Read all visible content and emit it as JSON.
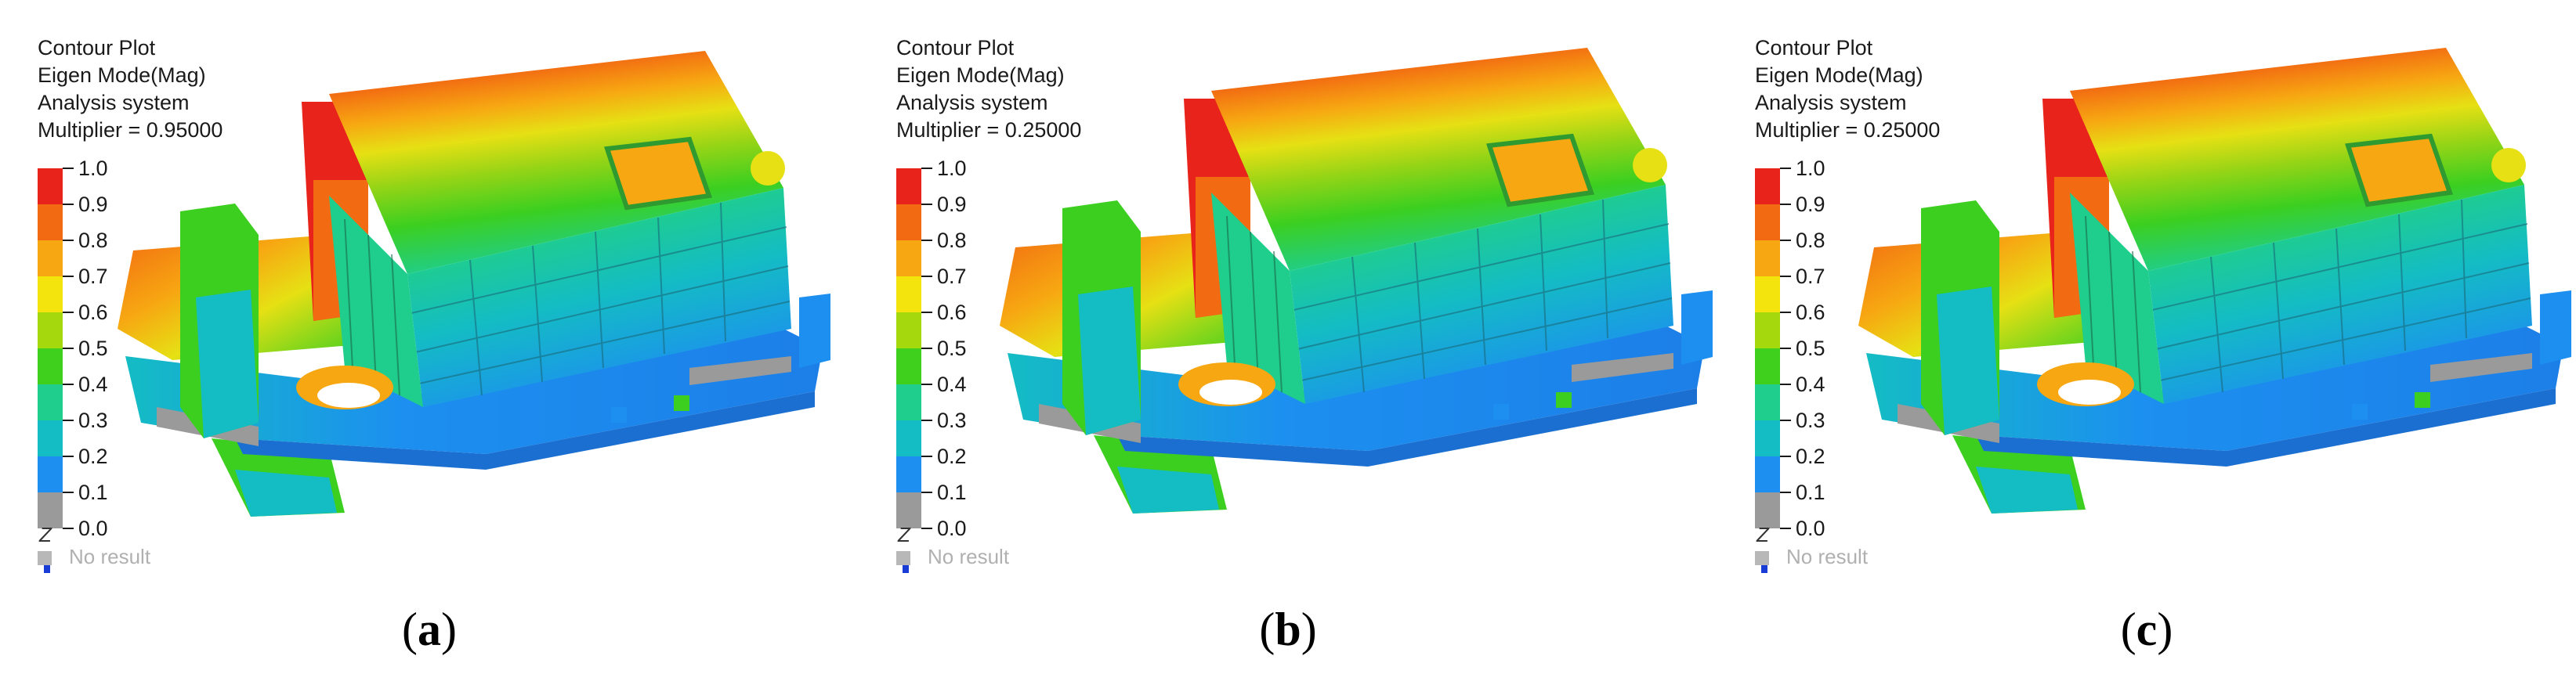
{
  "panels": [
    {
      "header": [
        "Contour Plot",
        "Eigen Mode(Mag)",
        "Analysis system",
        "Multiplier = 0.95000"
      ],
      "caption_letter": "a"
    },
    {
      "header": [
        "Contour Plot",
        "Eigen Mode(Mag)",
        "Analysis system",
        "Multiplier = 0.25000"
      ],
      "caption_letter": "b"
    },
    {
      "header": [
        "Contour Plot",
        "Eigen Mode(Mag)",
        "Analysis system",
        "Multiplier = 0.25000"
      ],
      "caption_letter": "c"
    }
  ],
  "legend": {
    "labels": [
      "1.0",
      "0.9",
      "0.8",
      "0.7",
      "0.6",
      "0.5",
      "0.4",
      "0.3",
      "0.2",
      "0.1",
      "0.0"
    ],
    "colors": [
      "#e8231b",
      "#f26b12",
      "#f7a712",
      "#f4e40e",
      "#a6d80e",
      "#3ed01c",
      "#1fce8c",
      "#14bcc4",
      "#1c8ff0",
      "#9a9a9a"
    ],
    "no_result": "No result",
    "axis_label": "Z"
  },
  "caption_open": "(",
  "caption_close": ")"
}
